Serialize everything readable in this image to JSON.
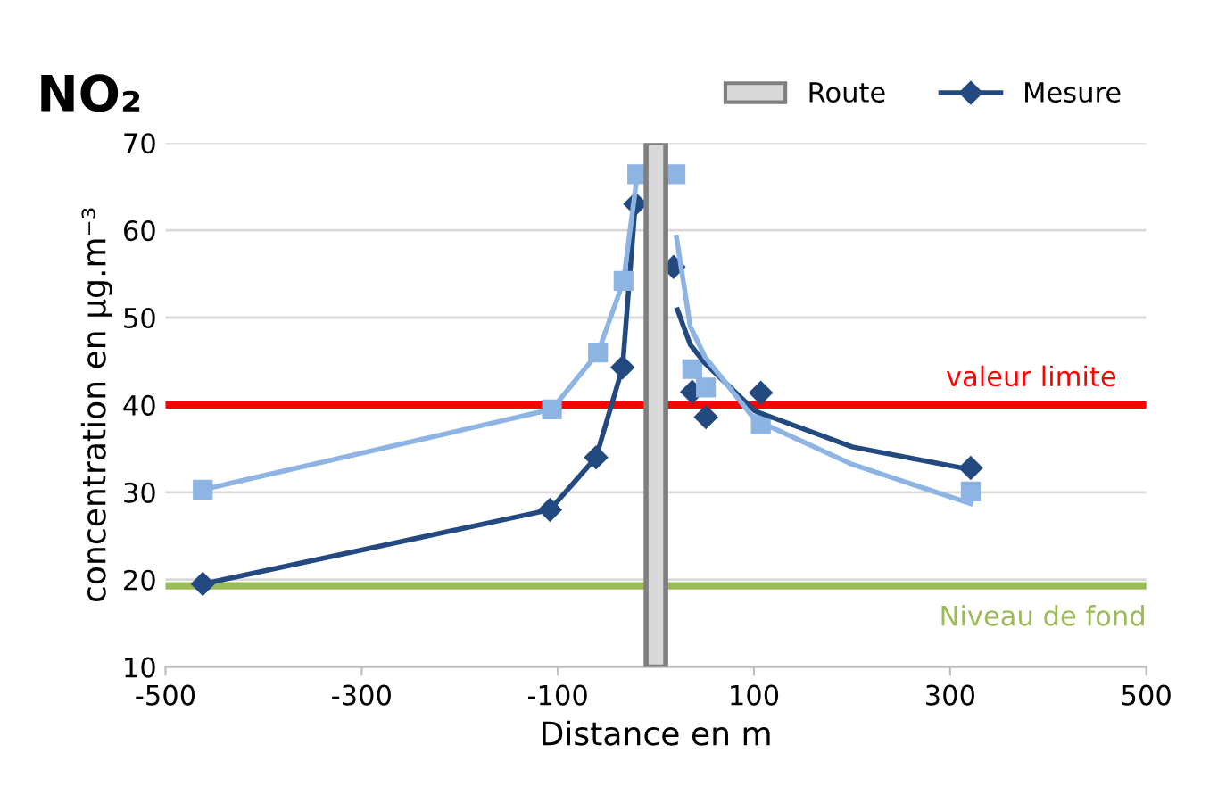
{
  "chart_data": {
    "type": "line",
    "title": "NO₂",
    "xlabel": "Distance en m",
    "ylabel": "concentration en µg.m⁻³",
    "xlim": [
      -500,
      500
    ],
    "xticks": [
      -500,
      -300,
      -100,
      100,
      300,
      500
    ],
    "ylim": [
      10,
      70
    ],
    "yticks": [
      10,
      20,
      30,
      40,
      50,
      60,
      70
    ],
    "grid": "y",
    "legend": "top right",
    "series": [
      {
        "name": "Mesure",
        "marker": "diamond",
        "color": "#234a80",
        "x": [
          -462,
          -108,
          -61,
          -34,
          -21
        ],
        "values": [
          19.5,
          28.0,
          34.0,
          44.3,
          63.0
        ]
      },
      {
        "type": "scatter",
        "marker": "diamond",
        "color": "#234a80",
        "x": [
          18,
          37,
          51,
          107,
          321
        ],
        "values": [
          55.8,
          41.5,
          38.6,
          41.4,
          32.8
        ]
      },
      {
        "marker": "square",
        "color": "#8db4e2",
        "x": [
          -462,
          -106,
          -59,
          -33,
          -19
        ],
        "values": [
          30.3,
          39.5,
          46.0,
          54.2,
          66.4
        ]
      },
      {
        "type": "scatter",
        "marker": "square",
        "color": "#8db4e2",
        "x": [
          20,
          37,
          51,
          107,
          321
        ],
        "values": [
          66.4,
          44.1,
          42.0,
          37.8,
          30.1
        ]
      },
      {
        "marker": "none",
        "color": "#234a80",
        "x": [
          22,
          35,
          50,
          101,
          200,
          321
        ],
        "values": [
          50.9,
          46.9,
          44.8,
          39.3,
          35.2,
          32.6
        ]
      },
      {
        "marker": "none",
        "color": "#8db4e2",
        "x": [
          21,
          35,
          50,
          101,
          200,
          321
        ],
        "values": [
          59.2,
          49.0,
          45.5,
          38.3,
          33.2,
          28.7
        ]
      }
    ],
    "bands": [
      {
        "axis": "x",
        "from": -10,
        "to": 10,
        "label": "Route",
        "color": "#d9d9d9"
      }
    ],
    "ref_lines": [
      {
        "axis": "y",
        "value": 40,
        "label": "valeur limite",
        "color": "#ff0000"
      },
      {
        "axis": "y",
        "value": 19.3,
        "label": "Niveau de fond",
        "color": "#9bbb59"
      }
    ]
  }
}
